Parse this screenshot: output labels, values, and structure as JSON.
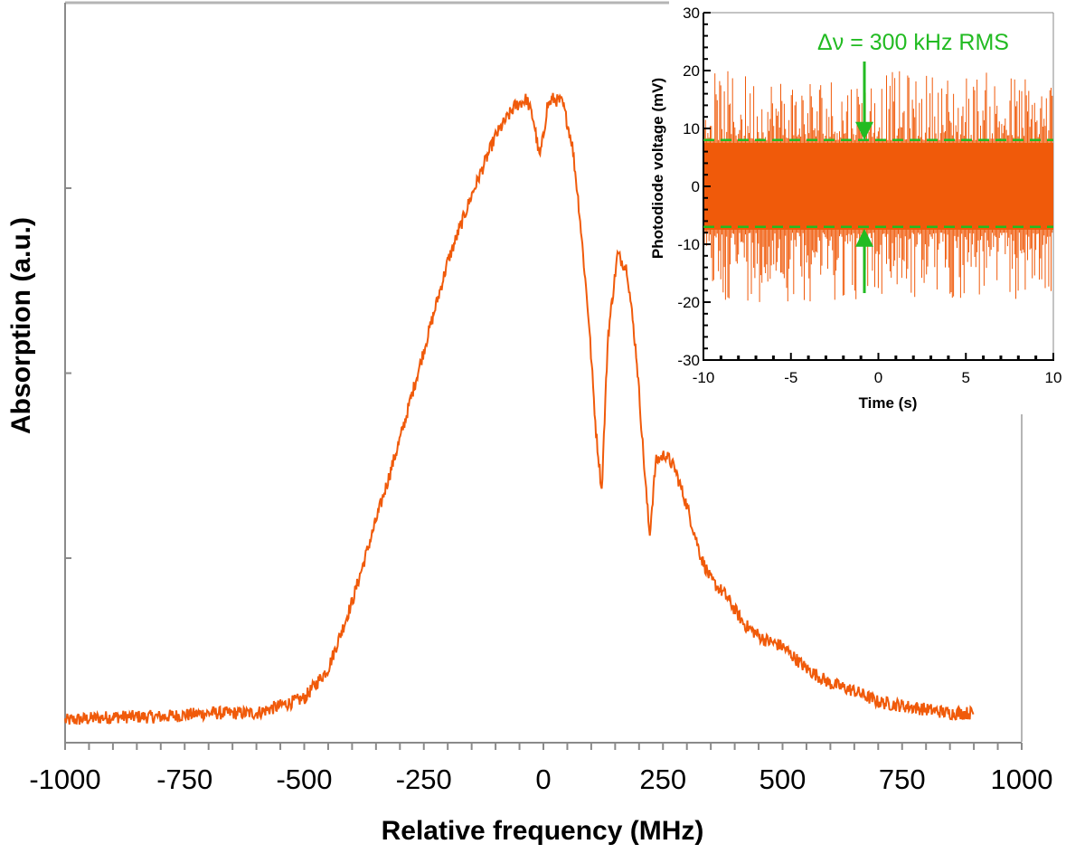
{
  "chart_data": [
    {
      "id": "main",
      "type": "line",
      "title": "",
      "xlabel": "Relative frequency (MHz)",
      "ylabel": "Absorption (a.u.)",
      "xlim": [
        -1000,
        1000
      ],
      "ylim": [
        0,
        1
      ],
      "xticks": [
        "-1000",
        "-750",
        "-500",
        "-250",
        "0",
        "250",
        "500",
        "750",
        "1000"
      ],
      "y_tick_labels_shown": false,
      "grid": false,
      "series_color": "#F05A0A",
      "series": [
        {
          "x": [
            -1000,
            -900,
            -800,
            -700,
            -600,
            -550,
            -500,
            -450,
            -400,
            -350,
            -300,
            -250,
            -200,
            -150,
            -100,
            -60,
            -35,
            -20,
            -8,
            0,
            8,
            20,
            40,
            60,
            75,
            95,
            110,
            122,
            135,
            155,
            175,
            195,
            210,
            222,
            235,
            255,
            275,
            300,
            330,
            350,
            380,
            420,
            460,
            500,
            550,
            600,
            650,
            700,
            750,
            800,
            850,
            900
          ],
          "y": [
            0.03,
            0.035,
            0.035,
            0.04,
            0.04,
            0.05,
            0.06,
            0.1,
            0.19,
            0.3,
            0.41,
            0.53,
            0.65,
            0.74,
            0.82,
            0.86,
            0.87,
            0.84,
            0.79,
            0.82,
            0.86,
            0.87,
            0.865,
            0.81,
            0.72,
            0.57,
            0.42,
            0.34,
            0.55,
            0.66,
            0.64,
            0.52,
            0.38,
            0.28,
            0.38,
            0.39,
            0.37,
            0.32,
            0.25,
            0.22,
            0.2,
            0.16,
            0.14,
            0.13,
            0.1,
            0.08,
            0.07,
            0.055,
            0.05,
            0.045,
            0.04,
            0.04
          ]
        }
      ]
    },
    {
      "id": "inset",
      "type": "line",
      "title": "",
      "xlabel": "Time (s)",
      "ylabel": "Photodiode voltage (mV)",
      "xlim": [
        -10,
        10
      ],
      "ylim": [
        -30,
        30
      ],
      "xticks": [
        "-10",
        "-5",
        "0",
        "5",
        "10"
      ],
      "yticks": [
        "30",
        "20",
        "10",
        "0",
        "-10",
        "-20",
        "-30"
      ],
      "grid": false,
      "series_color": "#F05A0A",
      "noise": {
        "mean_mV": 0,
        "band_half_width_mV": 7.5,
        "peak_mV": 20
      },
      "annotation": {
        "text": "Δν = 300 kHz RMS",
        "color": "#22BB22",
        "dashed_lines_mV": [
          8,
          -7
        ]
      }
    }
  ]
}
